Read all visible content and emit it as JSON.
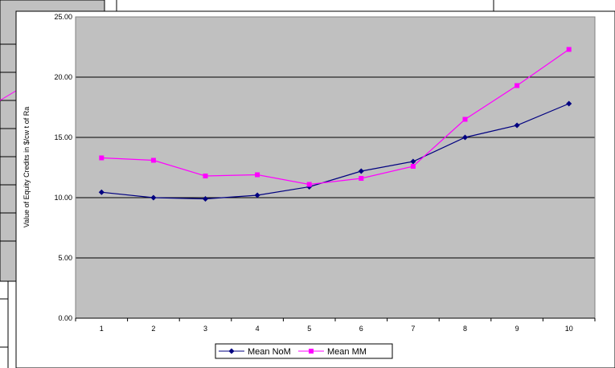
{
  "chart_data": {
    "type": "line",
    "title": "",
    "xlabel": "",
    "ylabel": "Value of Equity Credits in $/cw t of Ra",
    "categories": [
      "1",
      "2",
      "3",
      "4",
      "5",
      "6",
      "7",
      "8",
      "9",
      "10"
    ],
    "ylim": [
      0,
      25
    ],
    "yticks": [
      "0.00",
      "5.00",
      "10.00",
      "15.00",
      "20.00",
      "25.00"
    ],
    "grid": true,
    "legend_position": "bottom",
    "series": [
      {
        "name": "Mean NoM",
        "color": "#000080",
        "marker": "diamond",
        "values": [
          10.45,
          10.0,
          9.9,
          10.2,
          10.9,
          12.2,
          13.0,
          15.0,
          16.0,
          17.8
        ]
      },
      {
        "name": "Mean MM",
        "color": "#ff00ff",
        "marker": "square",
        "values": [
          13.3,
          13.1,
          11.8,
          11.9,
          11.1,
          11.6,
          12.6,
          16.5,
          19.3,
          22.3
        ]
      }
    ],
    "plot_background": "#c0c0c0"
  }
}
